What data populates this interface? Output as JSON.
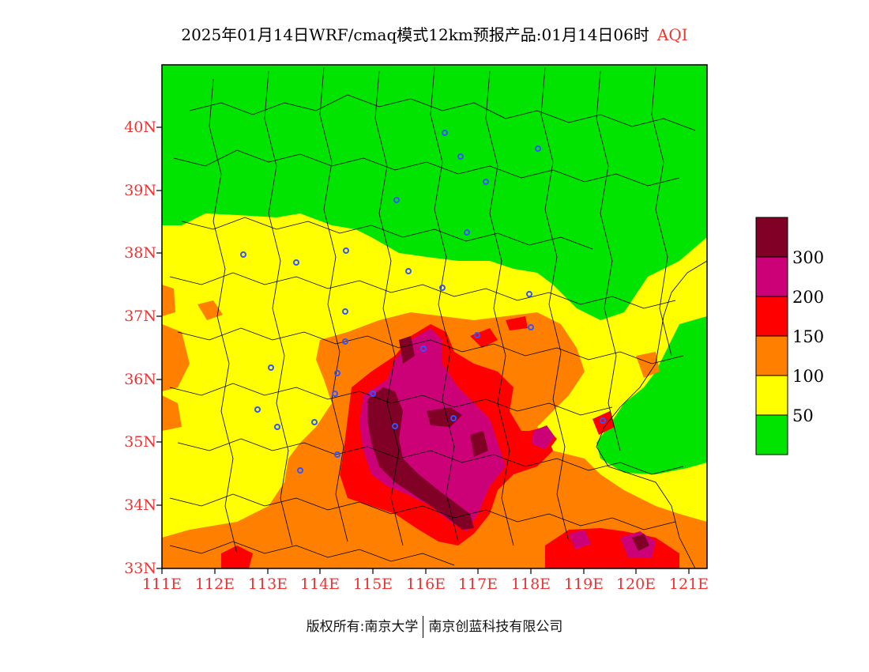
{
  "title": {
    "main": "2025年01月14日WRF/cmaq模式12km预报产品:01月14日06时",
    "product": "AQI"
  },
  "axes": {
    "lat_labels": [
      "40N",
      "39N",
      "38N",
      "37N",
      "36N",
      "35N",
      "34N",
      "33N"
    ],
    "lon_labels": [
      "111E",
      "112E",
      "113E",
      "114E",
      "115E",
      "116E",
      "117E",
      "118E",
      "119E",
      "120E",
      "121E"
    ],
    "lat_range": [
      33,
      41
    ],
    "lon_range": [
      111,
      121.4
    ]
  },
  "legend": {
    "title": "",
    "labels": [
      "300",
      "200",
      "150",
      "100",
      "50"
    ],
    "colors": [
      "#800026",
      "#cc0077",
      "#ff0000",
      "#ff7f00",
      "#ffff00",
      "#00e400"
    ]
  },
  "colors": {
    "good": "#00e400",
    "moderate": "#ffff00",
    "unhealthy_sensitive": "#ff7f00",
    "unhealthy": "#ff0000",
    "very_unhealthy": "#cc0077",
    "hazardous": "#800026",
    "axis_label": "#ee3333",
    "station_marker": "#3355ff"
  },
  "copyright": {
    "left": "版权所有:南京大学",
    "right": "南京创蓝科技有限公司"
  }
}
